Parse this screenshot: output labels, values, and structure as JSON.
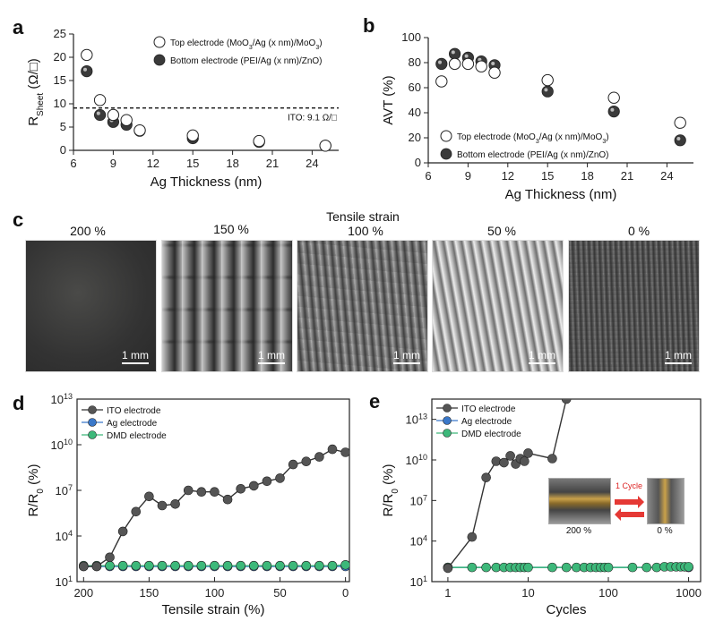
{
  "panels": {
    "a": "a",
    "b": "b",
    "c": "c",
    "d": "d",
    "e": "e"
  },
  "panel_c": {
    "header": "Tensile strain",
    "labels": [
      "200 %",
      "150 %",
      "100 %",
      "50 %",
      "0 %"
    ],
    "scale_bar": "1 mm"
  },
  "inset_e": {
    "arrow_label": "1 Cycle",
    "left_caption": "200 %",
    "right_caption": "0 %"
  },
  "colors": {
    "ito": "#555555",
    "ag": "#3a78c9",
    "dmd": "#3db87a",
    "dashed": "#111111"
  },
  "chart_data": [
    {
      "id": "a",
      "type": "scatter",
      "xlabel": "Ag Thickness (nm)",
      "ylabel_main": "R",
      "ylabel_sub": "Sheet",
      "ylabel_tail": " (Ω/□)",
      "xlim": [
        6,
        26
      ],
      "ylim": [
        0,
        25
      ],
      "xticks": [
        6,
        9,
        12,
        15,
        18,
        21,
        24
      ],
      "yticks": [
        0,
        5,
        10,
        15,
        20,
        25
      ],
      "ref_line": {
        "y": 9.1,
        "label": "ITO: 9.1 Ω/□"
      },
      "legend": [
        "Top electrode (MoO3/Ag (x nm)/MoO3)",
        "Bottom electrode (PEI/Ag (x nm)/ZnO)"
      ],
      "series": [
        {
          "name": "Top electrode (MoO3/Ag (x nm)/MoO3)",
          "style": "open",
          "x": [
            7,
            8,
            9,
            10,
            11,
            15,
            20,
            25
          ],
          "y": [
            20.5,
            10.8,
            7.6,
            6.5,
            4.3,
            3.2,
            2.0,
            1.0
          ]
        },
        {
          "name": "Bottom electrode (PEI/Ag (x nm)/ZnO)",
          "style": "filled",
          "x": [
            7,
            8,
            9,
            10,
            11,
            15,
            20,
            25
          ],
          "y": [
            17.0,
            7.6,
            6.1,
            5.5,
            4.2,
            2.6,
            1.8,
            1.0
          ]
        }
      ]
    },
    {
      "id": "b",
      "type": "scatter",
      "xlabel": "Ag Thickness (nm)",
      "ylabel": "AVT (%)",
      "xlim": [
        6,
        26
      ],
      "ylim": [
        0,
        100
      ],
      "xticks": [
        6,
        9,
        12,
        15,
        18,
        21,
        24
      ],
      "yticks": [
        0,
        20,
        40,
        60,
        80,
        100
      ],
      "legend": [
        "Top electrode (MoO3/Ag (x nm)/MoO3)",
        "Bottom electrode (PEI/Ag (x nm)/ZnO)"
      ],
      "series": [
        {
          "name": "Top electrode (MoO3/Ag (x nm)/MoO3)",
          "style": "open",
          "x": [
            7,
            8,
            9,
            10,
            11,
            15,
            20,
            25
          ],
          "y": [
            65,
            79,
            79,
            77,
            72,
            66,
            52,
            32
          ]
        },
        {
          "name": "Bottom electrode (PEI/Ag (x nm)/ZnO)",
          "style": "filled",
          "x": [
            7,
            8,
            9,
            10,
            11,
            15,
            20,
            25
          ],
          "y": [
            79,
            87,
            84,
            81,
            78,
            57,
            41,
            18
          ]
        }
      ]
    },
    {
      "id": "d",
      "type": "line",
      "xlabel": "Tensile strain (%)",
      "ylabel_main": "R/R",
      "ylabel_sub": "0",
      "ylabel_tail": " (%)",
      "xlim": [
        205,
        -3
      ],
      "ylog": true,
      "ylim_exp": [
        1,
        13
      ],
      "xticks": [
        200,
        150,
        100,
        50,
        0
      ],
      "yticks_exp": [
        1,
        4,
        7,
        10,
        13
      ],
      "legend": [
        "ITO electrode",
        "Ag electrode",
        "DMD electrode"
      ],
      "series": [
        {
          "name": "ITO electrode",
          "color": "#555555",
          "x": [
            200,
            190,
            180,
            170,
            160,
            150,
            140,
            130,
            120,
            110,
            100,
            90,
            80,
            70,
            60,
            50,
            40,
            30,
            20,
            10,
            0
          ],
          "log10y": [
            2.0,
            2.0,
            2.6,
            4.3,
            5.6,
            6.6,
            6.0,
            6.1,
            7.0,
            6.9,
            6.9,
            6.4,
            7.1,
            7.3,
            7.6,
            7.8,
            8.7,
            8.9,
            9.2,
            9.7,
            9.5
          ]
        },
        {
          "name": "Ag electrode",
          "color": "#3a78c9",
          "x": [
            200,
            190,
            180,
            170,
            160,
            150,
            140,
            130,
            120,
            110,
            100,
            90,
            80,
            70,
            60,
            50,
            40,
            30,
            20,
            10,
            0
          ],
          "log10y": [
            2,
            2,
            2,
            2,
            2,
            2,
            2,
            2,
            2,
            2,
            2,
            2,
            2,
            2,
            2,
            2,
            2,
            2,
            2,
            2,
            2
          ]
        },
        {
          "name": "DMD electrode",
          "color": "#3db87a",
          "x": [
            200,
            190,
            180,
            170,
            160,
            150,
            140,
            130,
            120,
            110,
            100,
            90,
            80,
            70,
            60,
            50,
            40,
            30,
            20,
            10,
            0
          ],
          "log10y": [
            2.05,
            2.05,
            2.05,
            2.05,
            2.05,
            2.05,
            2.05,
            2.05,
            2.05,
            2.05,
            2.05,
            2.05,
            2.05,
            2.05,
            2.05,
            2.05,
            2.05,
            2.05,
            2.05,
            2.05,
            2.1
          ]
        }
      ]
    },
    {
      "id": "e",
      "type": "line",
      "xlabel": "Cycles",
      "ylabel_main": "R/R",
      "ylabel_sub": "0",
      "ylabel_tail": " (%)",
      "xlog": true,
      "xlim_exp": [
        -0.2,
        3.15
      ],
      "xticks": [
        1,
        10,
        100,
        1000
      ],
      "ylog": true,
      "ylim_exp": [
        1,
        14.5
      ],
      "yticks_exp": [
        1,
        4,
        7,
        10,
        13
      ],
      "legend": [
        "ITO electrode",
        "Ag electrode",
        "DMD electrode"
      ],
      "series": [
        {
          "name": "ITO electrode",
          "color": "#555555",
          "x": [
            1,
            2,
            3,
            4,
            5,
            6,
            7,
            8,
            9,
            10,
            20,
            30
          ],
          "log10y": [
            2.0,
            4.3,
            8.7,
            9.9,
            9.8,
            10.3,
            9.7,
            10.1,
            9.9,
            10.5,
            10.1,
            14.5
          ]
        },
        {
          "name": "Ag electrode",
          "color": "#3a78c9",
          "x": [
            1,
            1000
          ],
          "log10y": [
            2.05,
            2.05
          ]
        },
        {
          "name": "DMD electrode",
          "color": "#3db87a",
          "x": [
            1,
            2,
            3,
            4,
            5,
            6,
            7,
            8,
            9,
            10,
            20,
            30,
            40,
            50,
            60,
            70,
            80,
            90,
            100,
            200,
            300,
            400,
            500,
            600,
            700,
            800,
            900,
            1000
          ],
          "log10y": [
            2.05,
            2.05,
            2.05,
            2.05,
            2.05,
            2.05,
            2.05,
            2.05,
            2.05,
            2.05,
            2.05,
            2.05,
            2.05,
            2.05,
            2.05,
            2.05,
            2.05,
            2.05,
            2.05,
            2.05,
            2.05,
            2.05,
            2.1,
            2.1,
            2.1,
            2.1,
            2.1,
            2.1
          ]
        }
      ]
    }
  ]
}
